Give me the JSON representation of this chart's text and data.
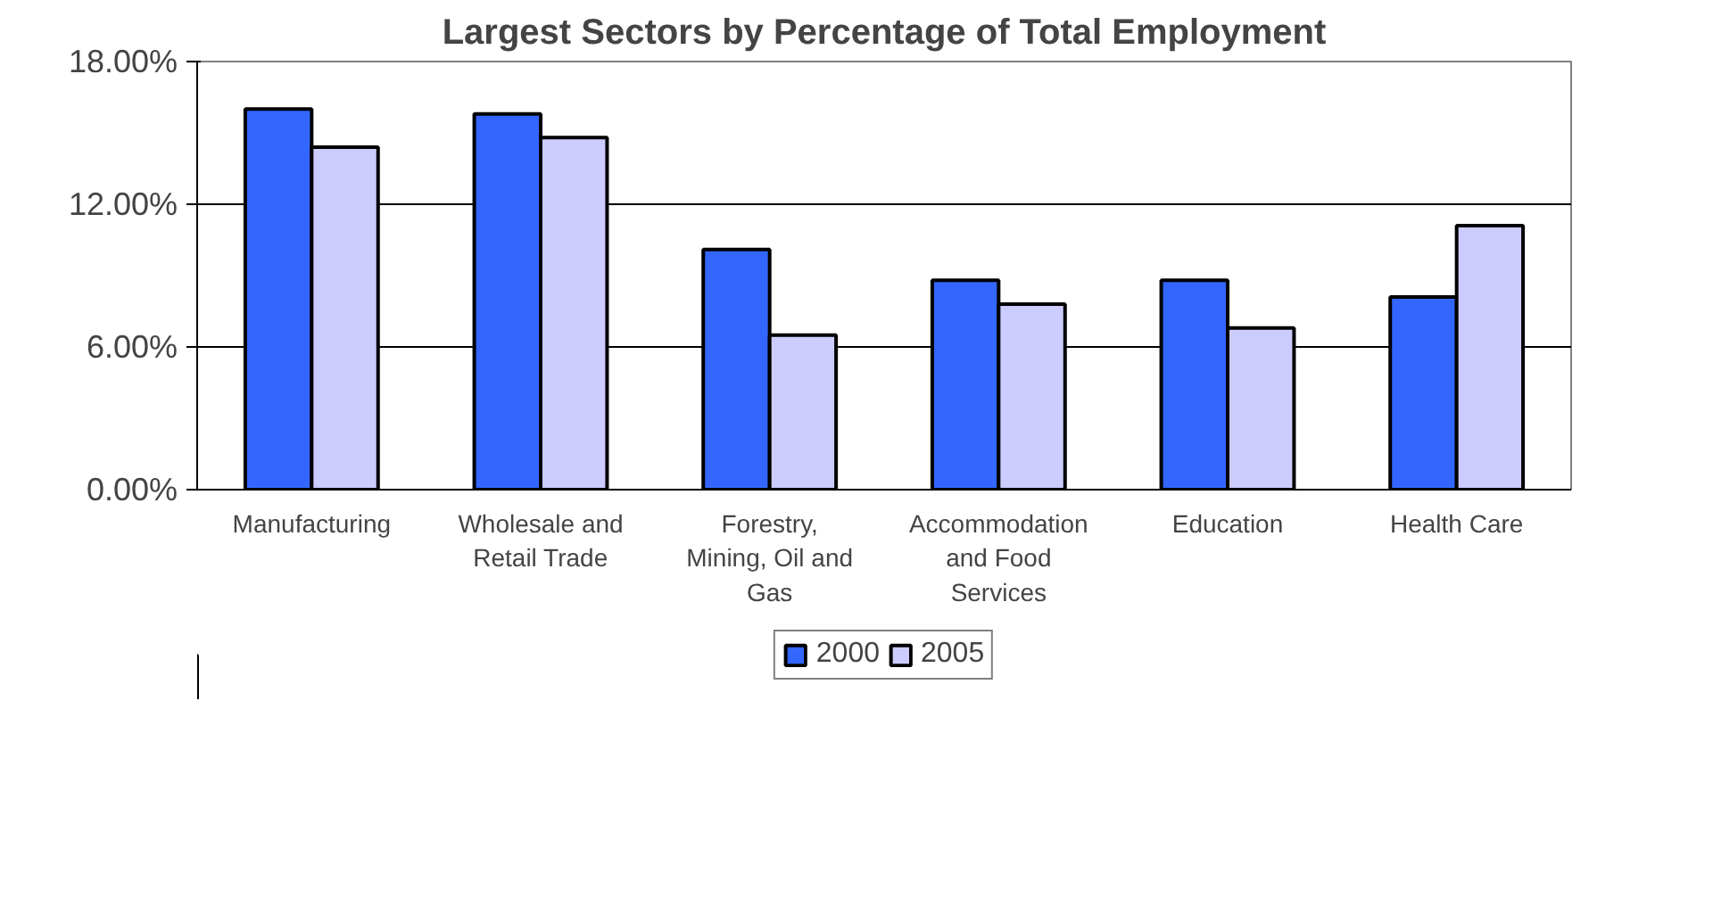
{
  "chart_data": {
    "type": "bar",
    "title": "Largest Sectors by Percentage of Total Employment",
    "categories": [
      "Manufacturing",
      "Wholesale and\nRetail Trade",
      "Forestry,\nMining, Oil and\nGas",
      "Accommodation\nand Food\nServices",
      "Education",
      "Health Care"
    ],
    "series": [
      {
        "name": "2000",
        "color": "#3366ff",
        "values": [
          16.0,
          15.8,
          10.1,
          8.8,
          8.8,
          8.1
        ]
      },
      {
        "name": "2005",
        "color": "#ccccff",
        "values": [
          14.4,
          14.8,
          6.5,
          7.8,
          6.8,
          11.1
        ]
      }
    ],
    "ylim": [
      0,
      18
    ],
    "yticks": [
      {
        "value": 0,
        "label": "0.00%"
      },
      {
        "value": 6,
        "label": "6.00%"
      },
      {
        "value": 12,
        "label": "12.00%"
      },
      {
        "value": 18,
        "label": "18.00%"
      }
    ],
    "grid": "y",
    "legend": "bottom"
  }
}
